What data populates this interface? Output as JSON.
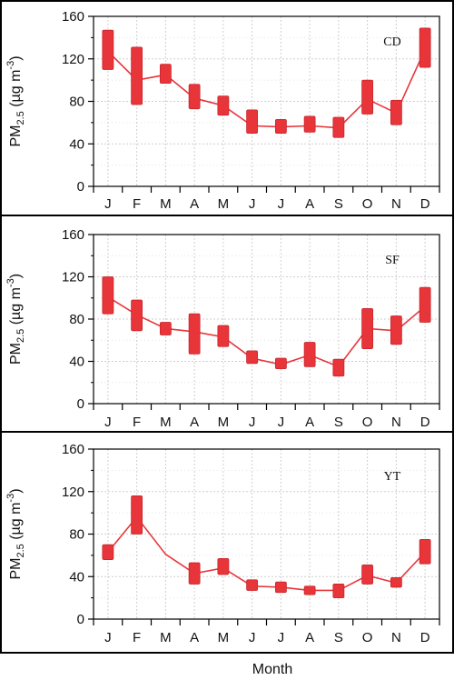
{
  "chart_data": [
    {
      "type": "boxplot-line",
      "site": "CD",
      "ylabel": "PM2.5 (µg m-3)",
      "categories": [
        "J",
        "F",
        "M",
        "A",
        "M",
        "J",
        "J",
        "A",
        "S",
        "O",
        "N",
        "D"
      ],
      "ylim": [
        0,
        160
      ],
      "yticks": [
        0,
        40,
        80,
        120,
        160
      ],
      "mean": [
        127,
        100,
        105,
        83,
        76,
        57,
        56,
        57,
        55,
        82,
        69,
        129
      ],
      "box_low": [
        110,
        77,
        97,
        73,
        67,
        50,
        50,
        51,
        46,
        68,
        58,
        112
      ],
      "box_high": [
        147,
        131,
        115,
        96,
        85,
        72,
        63,
        66,
        65,
        100,
        81,
        149
      ],
      "color": "#e8353a",
      "grid": true
    },
    {
      "type": "boxplot-line",
      "site": "SF",
      "ylabel": "PM2.5 (µg m-3)",
      "categories": [
        "J",
        "F",
        "M",
        "A",
        "M",
        "J",
        "J",
        "A",
        "S",
        "O",
        "N",
        "D"
      ],
      "ylim": [
        0,
        160
      ],
      "yticks": [
        0,
        40,
        80,
        120,
        160
      ],
      "mean": [
        101,
        84,
        71,
        68,
        63,
        43,
        37,
        46,
        35,
        71,
        69,
        92
      ],
      "box_low": [
        85,
        69,
        65,
        47,
        54,
        38,
        33,
        35,
        26,
        52,
        56,
        77
      ],
      "box_high": [
        120,
        98,
        77,
        85,
        74,
        50,
        43,
        58,
        42,
        90,
        83,
        110
      ],
      "color": "#e8353a",
      "grid": true
    },
    {
      "type": "boxplot-line",
      "site": "YT",
      "ylabel": "PM2.5 (µg m-3)",
      "categories": [
        "J",
        "F",
        "M",
        "A",
        "M",
        "J",
        "J",
        "A",
        "S",
        "O",
        "N",
        "D"
      ],
      "ylim": [
        0,
        160
      ],
      "yticks": [
        0,
        40,
        80,
        120,
        160
      ],
      "mean": [
        63,
        96,
        61,
        43,
        48,
        31,
        30,
        27,
        27,
        41,
        34,
        63
      ],
      "box_low": [
        56,
        80,
        null,
        33,
        42,
        27,
        25,
        23,
        20,
        33,
        30,
        52
      ],
      "box_high": [
        70,
        116,
        null,
        53,
        57,
        37,
        35,
        31,
        33,
        51,
        39,
        75
      ],
      "color": "#e8353a",
      "grid": true
    }
  ],
  "xlabel": "Month"
}
